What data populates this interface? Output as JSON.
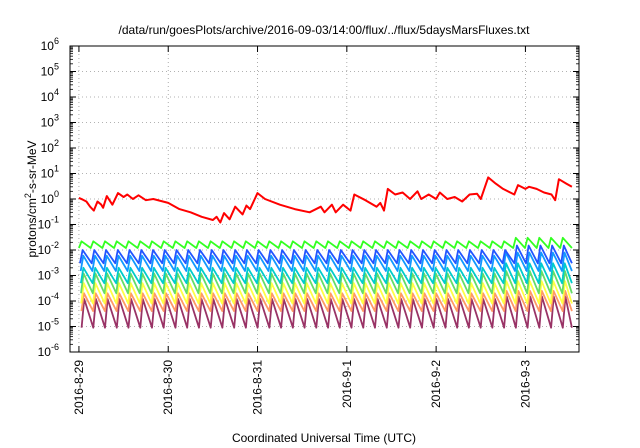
{
  "chart_data": {
    "type": "line",
    "title": "/data/run/goesPlots/archive/2016-09-03/14:00/flux/../flux/5daysMarsFluxes.txt",
    "xlabel": "Coordinated Universal Time (UTC)",
    "ylabel": "protons/cm²-s-sr-MeV",
    "ylabel_parts": {
      "pre": "protons/cm",
      "sup": "2",
      "post": "-s-sr-MeV"
    },
    "x_domain": [
      "2016-08-28 21:36",
      "2016-09-03 14:24"
    ],
    "x_ticks": [
      "2016-8-29",
      "2016-8-30",
      "2016-8-31",
      "2016-9-1",
      "2016-9-2",
      "2016-9-3"
    ],
    "y_scale": "log",
    "ylim": [
      1e-06,
      1000000.0
    ],
    "y_ticks": [
      {
        "base": "10",
        "exp": "-6"
      },
      {
        "base": "10",
        "exp": "-5"
      },
      {
        "base": "10",
        "exp": "-4"
      },
      {
        "base": "10",
        "exp": "-3"
      },
      {
        "base": "10",
        "exp": "-2"
      },
      {
        "base": "10",
        "exp": "-1"
      },
      {
        "base": "10",
        "exp": "0"
      },
      {
        "base": "10",
        "exp": "1"
      },
      {
        "base": "10",
        "exp": "2"
      },
      {
        "base": "10",
        "exp": "3"
      },
      {
        "base": "10",
        "exp": "4"
      },
      {
        "base": "10",
        "exp": "5"
      },
      {
        "base": "10",
        "exp": "6"
      }
    ],
    "grid": true,
    "series": [
      {
        "color": "#ff0000",
        "points": [
          [
            "2016-08-29 00:00",
            1.1
          ],
          [
            "2016-08-29 01:00",
            0.95
          ],
          [
            "2016-08-29 02:00",
            0.8
          ],
          [
            "2016-08-29 03:00",
            0.5
          ],
          [
            "2016-08-29 04:00",
            0.35
          ],
          [
            "2016-08-29 05:00",
            0.8
          ],
          [
            "2016-08-29 06:00",
            0.6
          ],
          [
            "2016-08-29 06:30",
            0.45
          ],
          [
            "2016-08-29 07:30",
            1.3
          ],
          [
            "2016-08-29 09:00",
            0.6
          ],
          [
            "2016-08-29 10:30",
            1.7
          ],
          [
            "2016-08-29 12:00",
            1.2
          ],
          [
            "2016-08-29 13:00",
            1.5
          ],
          [
            "2016-08-29 14:30",
            1.0
          ],
          [
            "2016-08-29 16:00",
            1.4
          ],
          [
            "2016-08-29 18:00",
            0.9
          ],
          [
            "2016-08-29 20:00",
            1.0
          ],
          [
            "2016-08-30 00:00",
            0.7
          ],
          [
            "2016-08-30 03:00",
            0.4
          ],
          [
            "2016-08-30 06:00",
            0.3
          ],
          [
            "2016-08-30 09:00",
            0.2
          ],
          [
            "2016-08-30 12:00",
            0.15
          ],
          [
            "2016-08-30 13:00",
            0.2
          ],
          [
            "2016-08-30 14:00",
            0.12
          ],
          [
            "2016-08-30 15:00",
            0.28
          ],
          [
            "2016-08-30 16:30",
            0.16
          ],
          [
            "2016-08-30 18:00",
            0.5
          ],
          [
            "2016-08-30 20:00",
            0.25
          ],
          [
            "2016-08-30 21:00",
            0.55
          ],
          [
            "2016-08-30 22:00",
            0.4
          ],
          [
            "2016-08-31 00:00",
            1.7
          ],
          [
            "2016-08-31 02:00",
            1.0
          ],
          [
            "2016-08-31 06:00",
            0.6
          ],
          [
            "2016-08-31 10:00",
            0.4
          ],
          [
            "2016-08-31 14:00",
            0.3
          ],
          [
            "2016-08-31 17:00",
            0.5
          ],
          [
            "2016-08-31 18:00",
            0.3
          ],
          [
            "2016-08-31 20:00",
            0.6
          ],
          [
            "2016-08-31 21:00",
            0.3
          ],
          [
            "2016-08-31 23:00",
            0.6
          ],
          [
            "2016-09-01 01:00",
            0.35
          ],
          [
            "2016-09-01 02:00",
            1.5
          ],
          [
            "2016-09-01 05:00",
            0.9
          ],
          [
            "2016-09-01 08:00",
            0.5
          ],
          [
            "2016-09-01 09:00",
            0.7
          ],
          [
            "2016-09-01 10:00",
            0.35
          ],
          [
            "2016-09-01 11:00",
            2.5
          ],
          [
            "2016-09-01 13:00",
            1.5
          ],
          [
            "2016-09-01 15:00",
            1.8
          ],
          [
            "2016-09-01 17:00",
            1.0
          ],
          [
            "2016-09-01 19:00",
            2.0
          ],
          [
            "2016-09-01 20:00",
            1.0
          ],
          [
            "2016-09-01 22:00",
            1.5
          ],
          [
            "2016-09-02 00:00",
            1.0
          ],
          [
            "2016-09-02 01:00",
            1.8
          ],
          [
            "2016-09-02 03:00",
            1.0
          ],
          [
            "2016-09-02 05:00",
            1.2
          ],
          [
            "2016-09-02 07:00",
            0.8
          ],
          [
            "2016-09-02 09:00",
            1.5
          ],
          [
            "2016-09-02 11:00",
            1.6
          ],
          [
            "2016-09-02 12:00",
            1.0
          ],
          [
            "2016-09-02 14:00",
            7.0
          ],
          [
            "2016-09-02 16:00",
            4.0
          ],
          [
            "2016-09-02 18:00",
            2.5
          ],
          [
            "2016-09-02 21:00",
            1.5
          ],
          [
            "2016-09-02 22:00",
            3.5
          ],
          [
            "2016-09-03 00:00",
            2.5
          ],
          [
            "2016-09-03 01:00",
            3.0
          ],
          [
            "2016-09-03 03:00",
            2.5
          ],
          [
            "2016-09-03 05:00",
            1.8
          ],
          [
            "2016-09-03 07:00",
            1.5
          ],
          [
            "2016-09-03 08:00",
            0.9
          ],
          [
            "2016-09-03 09:00",
            6.0
          ],
          [
            "2016-09-03 11:00",
            4.0
          ],
          [
            "2016-09-03 12:30",
            3.0
          ]
        ]
      },
      {
        "color": "#33ff22",
        "pattern": "sawtooth",
        "base": 0.012,
        "peak": 0.022,
        "late_peak": 0.03,
        "cycles": 42,
        "phase": 0.0
      },
      {
        "color": "#2255ff",
        "pattern": "sawtooth",
        "base": 0.003,
        "peak": 0.01,
        "late_peak": 0.015,
        "cycles": 42,
        "phase": 0.3
      },
      {
        "color": "#1199ff",
        "pattern": "sawtooth",
        "base": 0.0015,
        "peak": 0.006,
        "late_peak": 0.008,
        "cycles": 42,
        "phase": 0.5
      },
      {
        "color": "#00cccc",
        "pattern": "sawtooth",
        "base": 0.0005,
        "peak": 0.002,
        "late_peak": 0.003,
        "cycles": 42,
        "phase": 0.55
      },
      {
        "color": "#66dd66",
        "pattern": "sawtooth",
        "base": 0.0002,
        "peak": 0.0012,
        "late_peak": 0.0015,
        "cycles": 42,
        "phase": 0.6
      },
      {
        "color": "#ffff44",
        "pattern": "sawtooth",
        "base": 8e-05,
        "peak": 0.0005,
        "late_peak": 0.0006,
        "cycles": 42,
        "phase": 0.65
      },
      {
        "color": "#ff9966",
        "pattern": "sawtooth",
        "base": 4e-05,
        "peak": 0.0002,
        "late_peak": 0.00025,
        "cycles": 42,
        "phase": 0.7
      },
      {
        "color": "#993366",
        "pattern": "sawtooth",
        "base": 9e-06,
        "peak": 0.00012,
        "late_peak": 0.00015,
        "cycles": 42,
        "phase": 0.75
      }
    ]
  }
}
